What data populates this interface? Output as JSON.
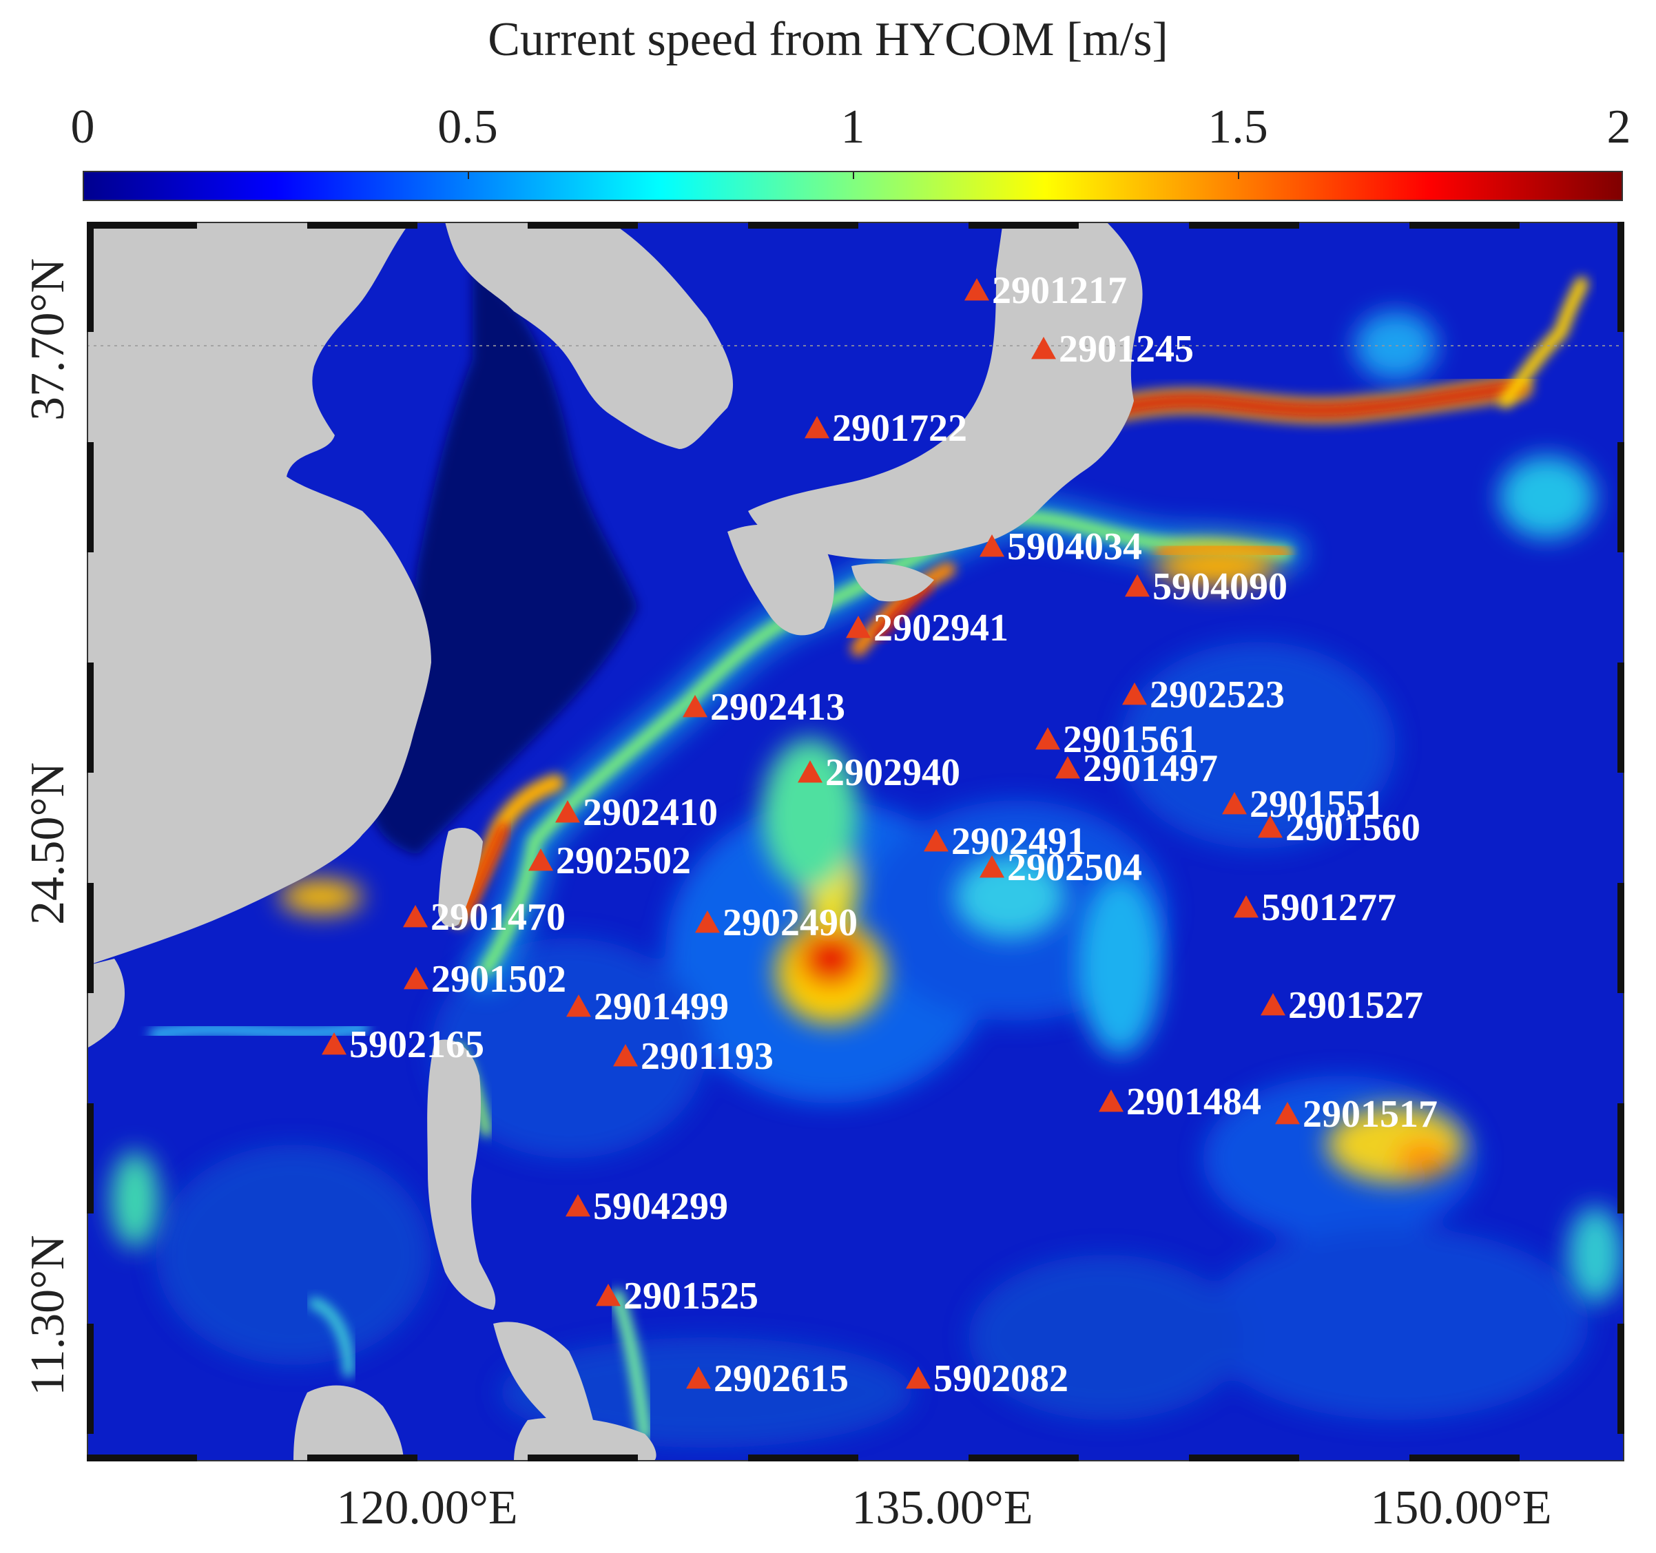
{
  "colorbar": {
    "title": "Current speed from HYCOM [m/s]",
    "ticks": [
      "0",
      "0.5",
      "1",
      "1.5",
      "2"
    ],
    "range": [
      0,
      2
    ],
    "colors": [
      "#00008f",
      "#0000ff",
      "#0080ff",
      "#00ffff",
      "#80ff80",
      "#ffff00",
      "#ff8000",
      "#ff0000",
      "#800000"
    ]
  },
  "map": {
    "land_color": "#c8c8c8",
    "ocean_base_color": "#0a1ec8",
    "marker_color": "#e8401c",
    "label_color": "#ffffff",
    "lat_labels": [
      "37.70°N",
      "24.50°N",
      "11.30°N"
    ],
    "lon_labels": [
      "120.00°E",
      "135.00°E",
      "150.00°E"
    ],
    "floats": [
      {
        "id": "2901217"
      },
      {
        "id": "2901245"
      },
      {
        "id": "2901722"
      },
      {
        "id": "5904034"
      },
      {
        "id": "5904090"
      },
      {
        "id": "2902941"
      },
      {
        "id": "2902523"
      },
      {
        "id": "2902413"
      },
      {
        "id": "2901561"
      },
      {
        "id": "2901497"
      },
      {
        "id": "2902940"
      },
      {
        "id": "2901551"
      },
      {
        "id": "2902410"
      },
      {
        "id": "2901560"
      },
      {
        "id": "2902491"
      },
      {
        "id": "2902502"
      },
      {
        "id": "2902504"
      },
      {
        "id": "5901277"
      },
      {
        "id": "2901470"
      },
      {
        "id": "2902490"
      },
      {
        "id": "2901502"
      },
      {
        "id": "2901527"
      },
      {
        "id": "2901499"
      },
      {
        "id": "5902165"
      },
      {
        "id": "2901193"
      },
      {
        "id": "2901484"
      },
      {
        "id": "2901517"
      },
      {
        "id": "5904299"
      },
      {
        "id": "2901525"
      },
      {
        "id": "2902615"
      },
      {
        "id": "5902082"
      }
    ]
  }
}
